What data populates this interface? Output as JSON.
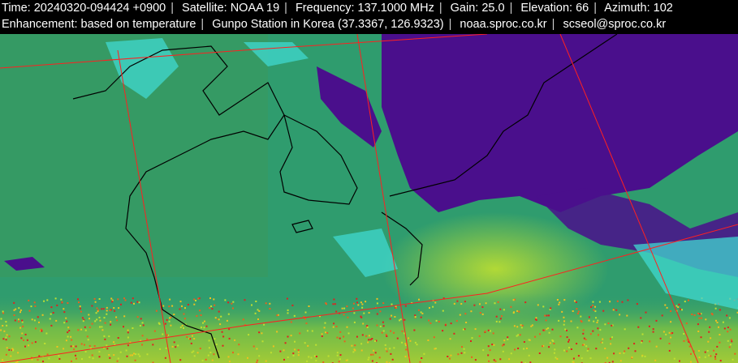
{
  "header": {
    "line1": [
      "Time: 20240320-094424 +0900",
      "Satellite: NOAA 19",
      "Frequency: 137.1000 MHz",
      "Gain: 25.0",
      "Elevation: 66",
      "Azimuth: 102"
    ],
    "line2": [
      "Enhancement: based on temperature",
      "Gunpo Station in Korea (37.3367, 126.9323)",
      "noaa.sproc.co.kr",
      "scseol@sproc.co.kr"
    ]
  },
  "image": {
    "subject": "satellite-image",
    "colors": {
      "cloud": "#4a0f8c",
      "sea": "#2f9c6e",
      "cyan": "#40d8d0",
      "warm": "#b8e030",
      "hot": "#e02020",
      "grid": "#ff2020",
      "coast": "#000000"
    }
  }
}
